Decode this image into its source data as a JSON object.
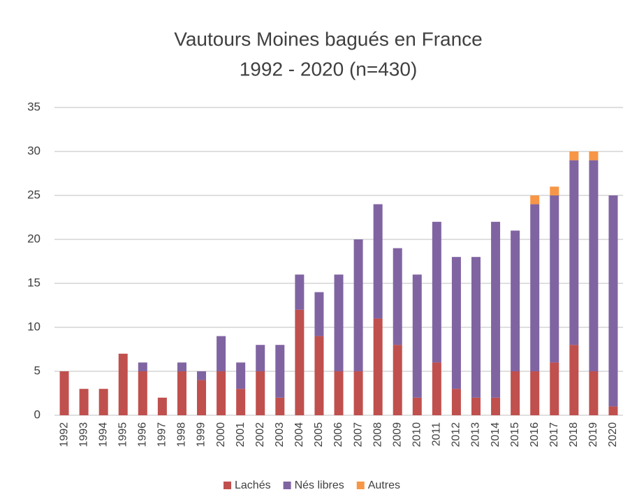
{
  "chart_data": {
    "type": "stacked_bar",
    "title": "Vautours Moines bagués en France",
    "subtitle": "1992 - 2020 (n=430)",
    "categories": [
      "1992",
      "1993",
      "1994",
      "1995",
      "1996",
      "1997",
      "1998",
      "1999",
      "2000",
      "2001",
      "2002",
      "2003",
      "2004",
      "2005",
      "2006",
      "2007",
      "2008",
      "2009",
      "2010",
      "2011",
      "2012",
      "2013",
      "2014",
      "2015",
      "2016",
      "2017",
      "2018",
      "2019",
      "2020"
    ],
    "series": [
      {
        "name": "Lachés",
        "color": "#c0504d",
        "values": [
          5,
          3,
          3,
          7,
          5,
          2,
          5,
          4,
          5,
          3,
          5,
          2,
          12,
          9,
          5,
          5,
          11,
          8,
          2,
          6,
          3,
          2,
          2,
          5,
          5,
          6,
          8,
          5,
          1
        ]
      },
      {
        "name": "Nés libres",
        "color": "#8064a2",
        "values": [
          0,
          0,
          0,
          0,
          1,
          0,
          1,
          1,
          4,
          3,
          3,
          6,
          4,
          5,
          11,
          15,
          13,
          11,
          14,
          16,
          15,
          16,
          20,
          16,
          19,
          19,
          21,
          24,
          24
        ]
      },
      {
        "name": "Autres",
        "color": "#f79646",
        "values": [
          0,
          0,
          0,
          0,
          0,
          0,
          0,
          0,
          0,
          0,
          0,
          0,
          0,
          0,
          0,
          0,
          0,
          0,
          0,
          0,
          0,
          0,
          0,
          0,
          1,
          1,
          1,
          1,
          0
        ]
      }
    ],
    "ylim": [
      0,
      35
    ],
    "yticks": [
      0,
      5,
      10,
      15,
      20,
      25,
      30,
      35
    ],
    "grid": true,
    "legend": "bottom"
  }
}
